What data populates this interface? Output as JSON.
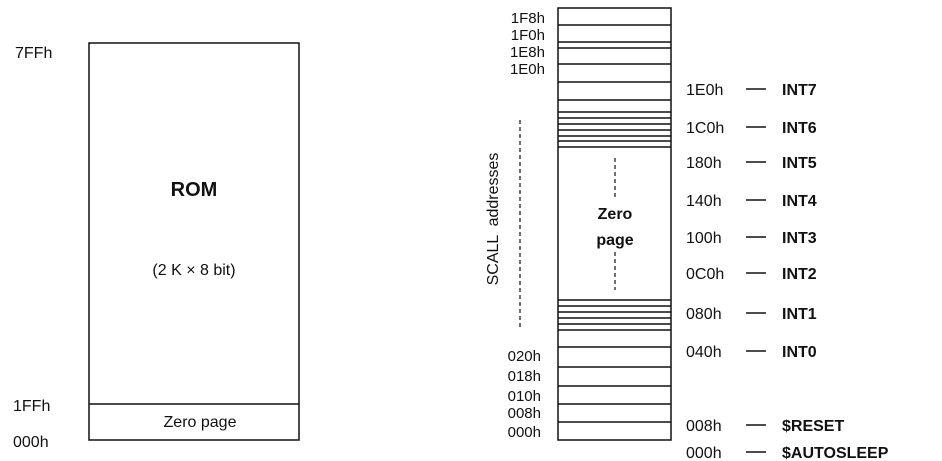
{
  "rom_map": {
    "top_address": "7FFh",
    "zero_page_top_address": "1FFh",
    "bottom_address": "000h",
    "title": "ROM",
    "size": "(2 K × 8 bit)",
    "zero_page_label": "Zero page"
  },
  "zero_page_map": {
    "top_addresses": [
      "1F8h",
      "1F0h",
      "1E8h",
      "1E0h"
    ],
    "bottom_addresses": [
      "020h",
      "018h",
      "010h",
      "008h",
      "000h"
    ],
    "vertical_label": "SCALL  addresses",
    "center_label_line1": "Zero",
    "center_label_line2": "page",
    "vectors": [
      {
        "address": "1E0h",
        "name": "INT7"
      },
      {
        "address": "1C0h",
        "name": "INT6"
      },
      {
        "address": "180h",
        "name": "INT5"
      },
      {
        "address": "140h",
        "name": "INT4"
      },
      {
        "address": "100h",
        "name": "INT3"
      },
      {
        "address": "0C0h",
        "name": "INT2"
      },
      {
        "address": "080h",
        "name": "INT1"
      },
      {
        "address": "040h",
        "name": "INT0"
      },
      {
        "address": "008h",
        "name": "$RESET"
      },
      {
        "address": "000h",
        "name": "$AUTOSLEEP"
      }
    ]
  }
}
